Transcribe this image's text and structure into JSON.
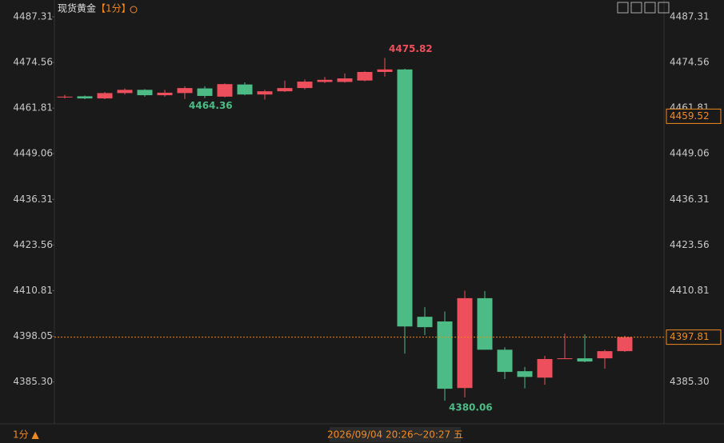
{
  "chart_data": {
    "type": "candlestick",
    "title": "现货黄金",
    "period_label": "【1分】",
    "up_color": "#ee4f5c",
    "down_color": "#4cbb85",
    "open": [
      4464.8,
      4465.1,
      4464.5,
      4466.0,
      4466.9,
      4465.4,
      4466.0,
      4467.3,
      4465.0,
      4468.4,
      4465.6,
      4466.5,
      4467.4,
      4469.1,
      4469.1,
      4469.5,
      4471.9,
      4472.6,
      4403.5,
      4402.2,
      4383.6,
      4408.7,
      4394.3,
      4388.3,
      4386.5,
      4391.7,
      4391.9,
      4391.9,
      4393.9
    ],
    "high": [
      4465.5,
      4465.3,
      4466.3,
      4467.3,
      4467.1,
      4466.9,
      4467.9,
      4467.9,
      4468.7,
      4469.0,
      4466.9,
      4469.5,
      4469.8,
      4470.5,
      4471.5,
      4472.1,
      4475.82,
      4472.8,
      4406.2,
      4405.0,
      4410.8,
      4410.7,
      4395.0,
      4389.5,
      4392.6,
      4398.8,
      4398.6,
      4394.3,
      4398.2
    ],
    "low": [
      4464.5,
      4464.3,
      4464.3,
      4465.6,
      4465.0,
      4465.0,
      4464.36,
      4464.6,
      4464.8,
      4465.4,
      4464.2,
      4466.3,
      4467.0,
      4468.8,
      4468.9,
      4469.3,
      4470.6,
      4393.2,
      4398.4,
      4380.06,
      4381.0,
      4394.3,
      4386.1,
      4383.5,
      4384.5,
      4391.7,
      4390.8,
      4389.0,
      4393.7
    ],
    "close": [
      4465.0,
      4464.5,
      4466.0,
      4466.9,
      4465.4,
      4466.1,
      4467.4,
      4465.2,
      4468.5,
      4465.6,
      4466.5,
      4467.4,
      4469.2,
      4469.7,
      4470.1,
      4471.9,
      4472.6,
      4400.8,
      4400.6,
      4383.4,
      4408.7,
      4394.3,
      4388.1,
      4386.7,
      4391.7,
      4391.9,
      4391.0,
      4393.9,
      4397.81
    ],
    "ylim": [
      4373.6,
      4492.0
    ],
    "yticks": [
      4487.31,
      4474.56,
      4461.81,
      4449.06,
      4436.31,
      4423.56,
      4410.81,
      4398.05,
      {
        "value": 4385.3,
        "label": "4385.30"
      }
    ],
    "last_price": 4397.81,
    "reference_price": 4459.52,
    "period": "1分 ▲",
    "time_range": "2026/09/04 20:26～20:27 五"
  }
}
